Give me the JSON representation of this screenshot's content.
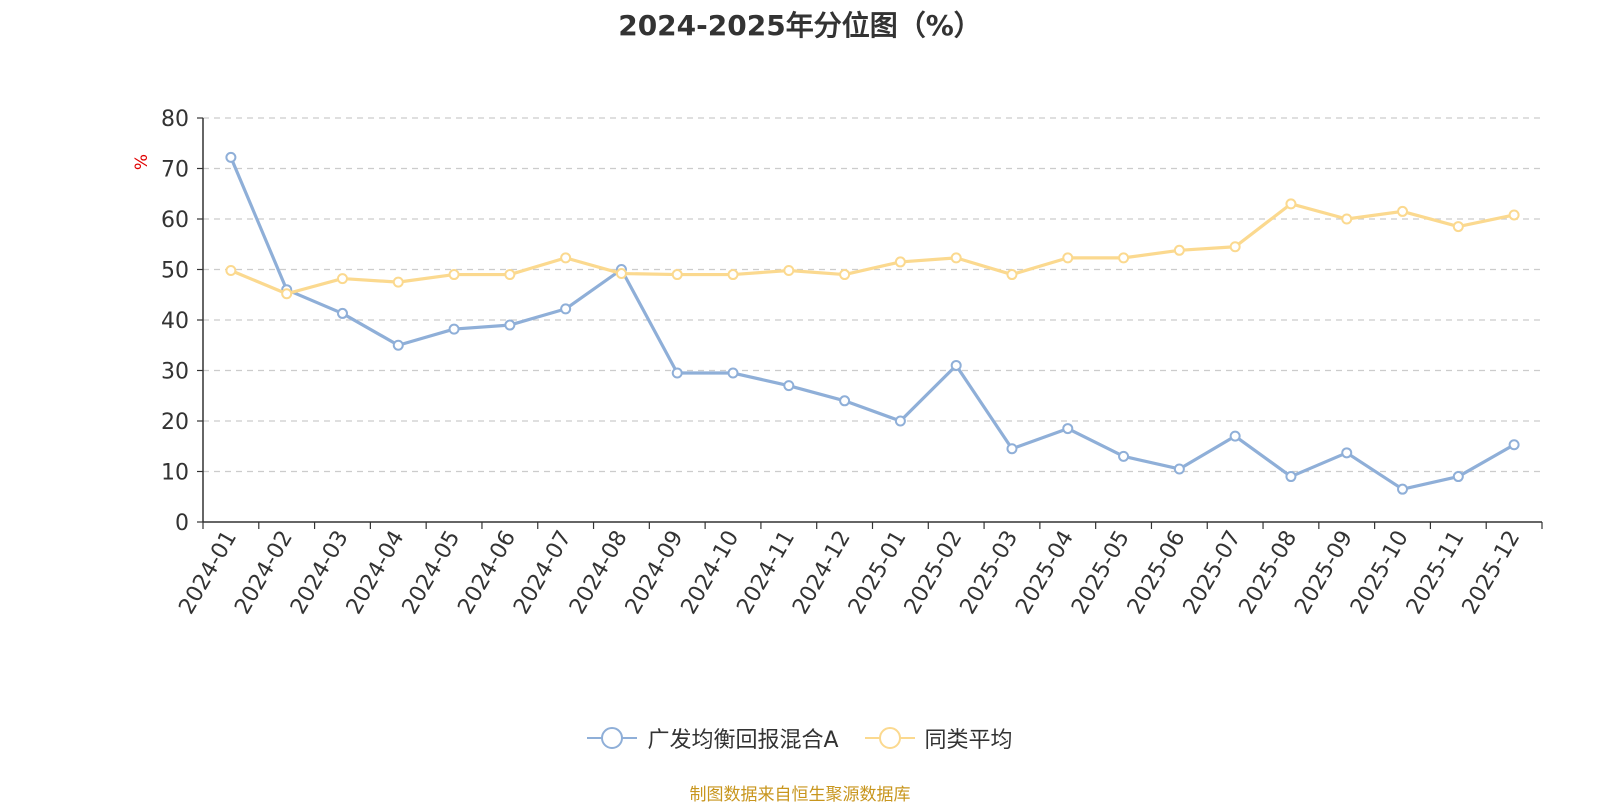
{
  "title": "2024-2025年分位图（%）",
  "source_text": "制图数据来自恒生聚源数据库",
  "colors": {
    "fund": "#8fafd8",
    "peer": "#fbd98f",
    "unit": "#e00000",
    "source": "#c8961e",
    "axis": "#333333",
    "grid": "#cccccc"
  },
  "chart_data": {
    "type": "line",
    "title": "2024-2025年分位图（%）",
    "ylabel": "%",
    "ylim": [
      0,
      80
    ],
    "yticks": [
      0,
      10,
      20,
      30,
      40,
      50,
      60,
      70,
      80
    ],
    "grid": "horizontal dashed",
    "legend_position": "bottom-center",
    "categories": [
      "2024-01",
      "2024-02",
      "2024-03",
      "2024-04",
      "2024-05",
      "2024-06",
      "2024-07",
      "2024-08",
      "2024-09",
      "2024-10",
      "2024-11",
      "2024-12",
      "2025-01",
      "2025-02",
      "2025-03",
      "2025-04",
      "2025-05",
      "2025-06",
      "2025-07",
      "2025-08",
      "2025-09",
      "2025-10",
      "2025-11",
      "2025-12"
    ],
    "series": [
      {
        "name": "广发均衡回报混合A",
        "color": "#8fafd8",
        "values": [
          72.2,
          46.0,
          41.3,
          35.0,
          38.2,
          39.0,
          42.2,
          50.0,
          29.5,
          29.5,
          27.0,
          24.0,
          20.0,
          31.0,
          14.5,
          18.5,
          13.0,
          10.5,
          17.0,
          9.0,
          13.7,
          6.5,
          9.0,
          15.3
        ]
      },
      {
        "name": "同类平均",
        "color": "#fbd98f",
        "values": [
          49.8,
          45.2,
          48.2,
          47.5,
          49.0,
          49.0,
          52.3,
          49.2,
          49.0,
          49.0,
          49.8,
          49.0,
          51.5,
          52.3,
          49.0,
          52.3,
          52.3,
          53.8,
          54.5,
          63.0,
          60.0,
          61.5,
          58.5,
          60.8
        ]
      }
    ]
  }
}
